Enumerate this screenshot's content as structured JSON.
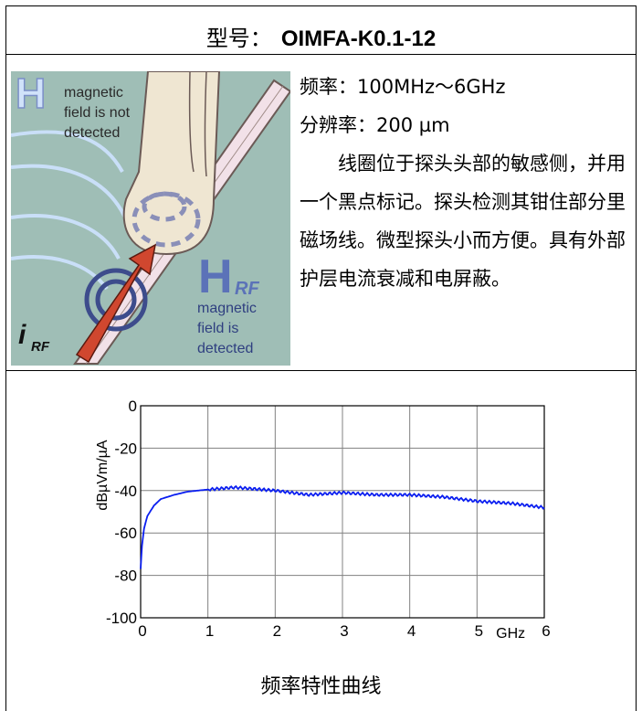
{
  "header": {
    "label": "型号：",
    "model": "OIMFA-K0.1-12"
  },
  "illustration": {
    "h_not": "H",
    "text_not_1": "magnetic",
    "text_not_2": "field is not",
    "text_not_3": "detected",
    "h_rf": "H",
    "h_rf_sub": "RF",
    "text_det_1": "magnetic",
    "text_det_2": "field is",
    "text_det_3": "detected",
    "i_rf": "i",
    "i_rf_sub": "RF"
  },
  "specs": {
    "freq": "频率：100MHz～6GHz",
    "resolution": "分辨率：200 µm",
    "description": "线圈位于探头头部的敏感侧，并用一个黑点标记。探头检测其钳住部分里磁场线。微型探头小而方便。具有外部护层电流衰减和电屏蔽。"
  },
  "caption": "频率特性曲线",
  "colors": {
    "curve": "#0a1ef0",
    "background_teal": "#9fbeb6",
    "grid": "#808080"
  },
  "chart_data": {
    "type": "line",
    "ylabel": "dBµVm/µA",
    "x_unit_label": "GHz",
    "xlim": [
      0,
      6
    ],
    "ylim": [
      -100,
      0
    ],
    "x_ticks": [
      "0",
      "1",
      "2",
      "3",
      "4",
      "5",
      "6"
    ],
    "y_ticks": [
      "0",
      "-20",
      "-40",
      "-60",
      "-80",
      "-100"
    ],
    "grid": true,
    "series": [
      {
        "x": [
          0.0,
          0.02,
          0.05,
          0.1,
          0.2,
          0.3,
          0.5,
          0.7,
          1.0,
          1.2,
          1.4,
          1.6,
          2.0,
          2.5,
          3.0,
          3.5,
          4.0,
          4.5,
          5.0,
          5.5,
          6.0
        ],
        "values": [
          -77,
          -66,
          -58,
          -52,
          -47,
          -44,
          -42,
          -40.5,
          -39.5,
          -39,
          -38.5,
          -39,
          -40,
          -42,
          -41,
          -42,
          -42,
          -43,
          -45,
          -46,
          -48
        ]
      }
    ]
  }
}
